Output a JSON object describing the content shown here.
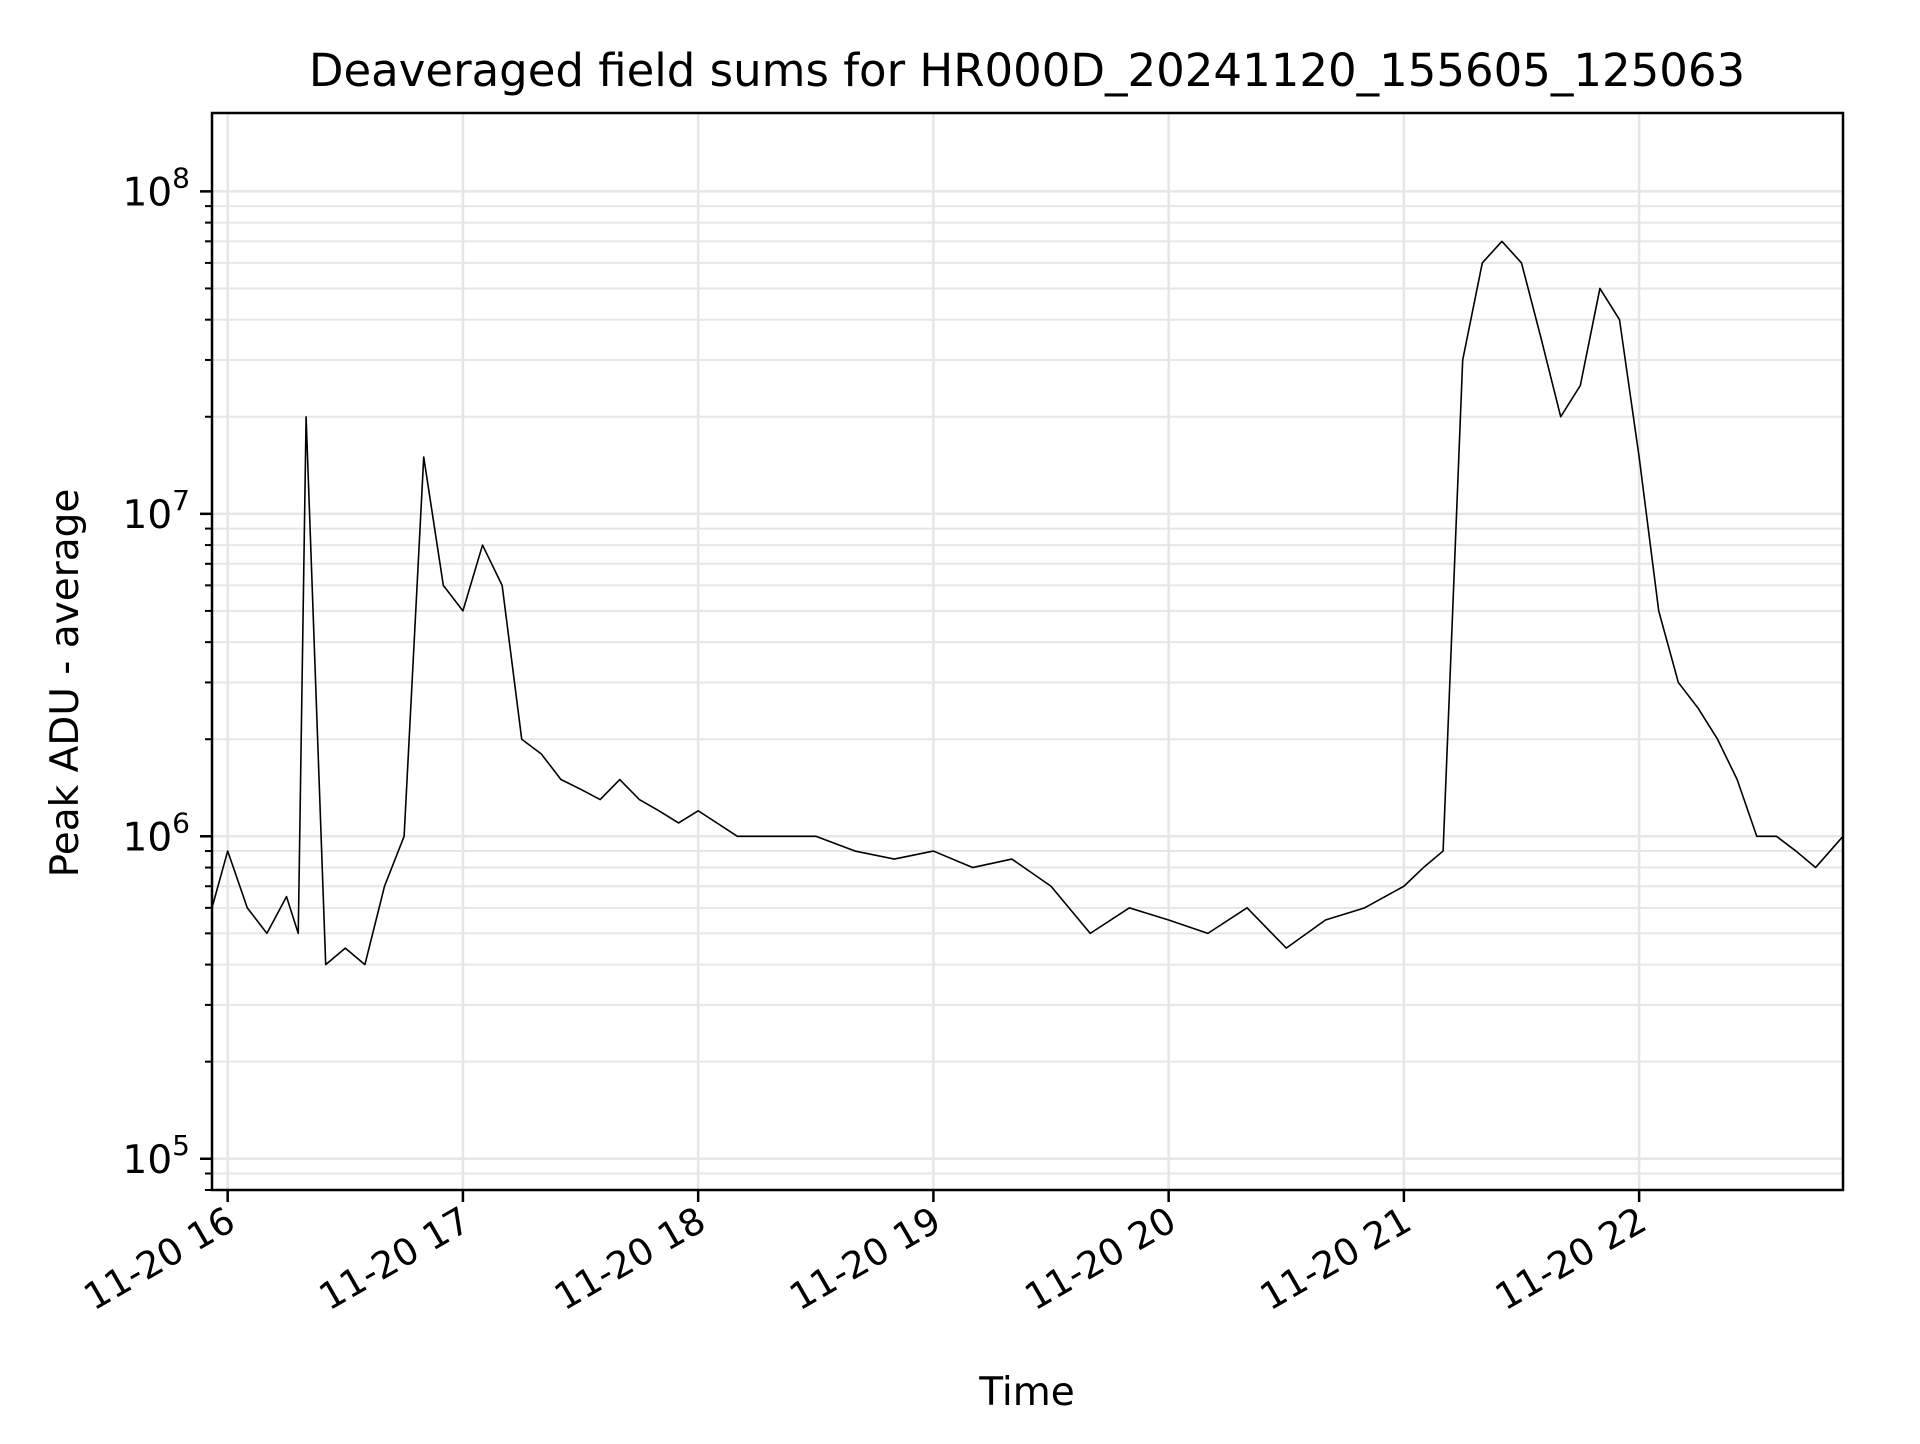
{
  "chart_data": {
    "type": "line",
    "title": "Deaveraged field sums for HR000D_20241120_155605_125063",
    "xlabel": "Time",
    "ylabel": "Peak ADU - average",
    "y_scale": "log",
    "ylim": [
      80000,
      175000000
    ],
    "xlim": [
      "2024-11-20 15:56",
      "2024-11-20 22:52"
    ],
    "grid": true,
    "line_color": "#000000",
    "x_ticks": [
      {
        "value": "2024-11-20 16:00",
        "label": "11-20 16"
      },
      {
        "value": "2024-11-20 17:00",
        "label": "11-20 17"
      },
      {
        "value": "2024-11-20 18:00",
        "label": "11-20 18"
      },
      {
        "value": "2024-11-20 19:00",
        "label": "11-20 19"
      },
      {
        "value": "2024-11-20 20:00",
        "label": "11-20 20"
      },
      {
        "value": "2024-11-20 21:00",
        "label": "11-20 21"
      },
      {
        "value": "2024-11-20 22:00",
        "label": "11-20 22"
      }
    ],
    "y_ticks": [
      {
        "value": 100000,
        "base": "10",
        "exp": "5"
      },
      {
        "value": 1000000,
        "base": "10",
        "exp": "6"
      },
      {
        "value": 10000000,
        "base": "10",
        "exp": "7"
      },
      {
        "value": 100000000,
        "base": "10",
        "exp": "8"
      }
    ],
    "series": [
      {
        "x": [
          "2024-11-20 15:56",
          "2024-11-20 16:00",
          "2024-11-20 16:05",
          "2024-11-20 16:10",
          "2024-11-20 16:15",
          "2024-11-20 16:18",
          "2024-11-20 16:20",
          "2024-11-20 16:25",
          "2024-11-20 16:30",
          "2024-11-20 16:35",
          "2024-11-20 16:40",
          "2024-11-20 16:45",
          "2024-11-20 16:50",
          "2024-11-20 16:55",
          "2024-11-20 17:00",
          "2024-11-20 17:05",
          "2024-11-20 17:10",
          "2024-11-20 17:15",
          "2024-11-20 17:20",
          "2024-11-20 17:25",
          "2024-11-20 17:30",
          "2024-11-20 17:35",
          "2024-11-20 17:40",
          "2024-11-20 17:45",
          "2024-11-20 17:50",
          "2024-11-20 17:55",
          "2024-11-20 18:00",
          "2024-11-20 18:10",
          "2024-11-20 18:20",
          "2024-11-20 18:30",
          "2024-11-20 18:40",
          "2024-11-20 18:50",
          "2024-11-20 19:00",
          "2024-11-20 19:10",
          "2024-11-20 19:20",
          "2024-11-20 19:30",
          "2024-11-20 19:40",
          "2024-11-20 19:50",
          "2024-11-20 20:00",
          "2024-11-20 20:10",
          "2024-11-20 20:20",
          "2024-11-20 20:30",
          "2024-11-20 20:40",
          "2024-11-20 20:50",
          "2024-11-20 21:00",
          "2024-11-20 21:05",
          "2024-11-20 21:10",
          "2024-11-20 21:15",
          "2024-11-20 21:20",
          "2024-11-20 21:25",
          "2024-11-20 21:30",
          "2024-11-20 21:35",
          "2024-11-20 21:40",
          "2024-11-20 21:45",
          "2024-11-20 21:50",
          "2024-11-20 21:55",
          "2024-11-20 22:00",
          "2024-11-20 22:05",
          "2024-11-20 22:10",
          "2024-11-20 22:15",
          "2024-11-20 22:20",
          "2024-11-20 22:25",
          "2024-11-20 22:30",
          "2024-11-20 22:35",
          "2024-11-20 22:40",
          "2024-11-20 22:45",
          "2024-11-20 22:52"
        ],
        "y": [
          600000,
          900000,
          600000,
          500000,
          650000,
          500000,
          20000000,
          400000,
          450000,
          400000,
          700000,
          1000000,
          15000000,
          6000000,
          5000000,
          8000000,
          6000000,
          2000000,
          1800000,
          1500000,
          1400000,
          1300000,
          1500000,
          1300000,
          1200000,
          1100000,
          1200000,
          1000000,
          1000000,
          1000000,
          900000,
          850000,
          900000,
          800000,
          850000,
          700000,
          500000,
          600000,
          550000,
          500000,
          600000,
          450000,
          550000,
          600000,
          700000,
          800000,
          900000,
          30000000,
          60000000,
          70000000,
          60000000,
          35000000,
          20000000,
          25000000,
          50000000,
          40000000,
          15000000,
          5000000,
          3000000,
          2500000,
          2000000,
          1500000,
          1000000,
          1000000,
          900000,
          800000,
          1000000
        ]
      }
    ]
  }
}
